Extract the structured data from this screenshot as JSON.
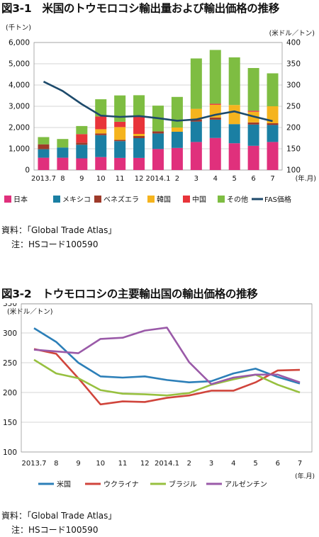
{
  "fig1": {
    "title": "図3-1　米国のトウモロコシ輸出量および輸出価格の推移",
    "source_label": "資料：「Global Trade Atlas」",
    "note_label": "注：HSコード100590"
  },
  "fig2": {
    "title": "図3-2　トウモロコシの主要輸出国の輸出価格の推移",
    "source_label": "資料：「Global Trade Atlas」",
    "note_label": "注：HSコード100590"
  },
  "chart_data": [
    {
      "type": "bar",
      "stacked": true,
      "categories": [
        "2013.7",
        "8",
        "9",
        "10",
        "11",
        "12",
        "2014.1",
        "2",
        "3",
        "4",
        "5",
        "6",
        "7"
      ],
      "xunit": "(年.月)",
      "ylabel": "(千トン)",
      "ylim": [
        0,
        6000
      ],
      "yticks": [
        "0",
        "1,000",
        "2,000",
        "3,000",
        "4,000",
        "5,000",
        "6,000"
      ],
      "y2label": "(米ドル／トン)",
      "y2lim": [
        100,
        400
      ],
      "y2ticks": [
        "100",
        "150",
        "200",
        "250",
        "300",
        "350",
        "400"
      ],
      "grid": true,
      "legend_position": "bottom",
      "series": [
        {
          "name": "日本",
          "color": "#e0307c",
          "values": [
            580,
            580,
            550,
            610,
            570,
            570,
            990,
            1040,
            1320,
            1510,
            1260,
            1140,
            1320
          ]
        },
        {
          "name": "メキシコ",
          "color": "#1a7fa3",
          "values": [
            400,
            480,
            640,
            1030,
            790,
            930,
            730,
            760,
            960,
            860,
            900,
            1000,
            800
          ]
        },
        {
          "name": "ベネズエラ",
          "color": "#9e3a2a",
          "values": [
            230,
            0,
            100,
            80,
            60,
            100,
            100,
            0,
            100,
            100,
            0,
            100,
            80
          ]
        },
        {
          "name": "韓国",
          "color": "#f5b41e",
          "values": [
            0,
            0,
            0,
            200,
            600,
            100,
            0,
            200,
            500,
            600,
            900,
            500,
            800
          ]
        },
        {
          "name": "中国",
          "color": "#e8343a",
          "values": [
            0,
            0,
            400,
            600,
            250,
            800,
            0,
            0,
            0,
            50,
            0,
            50,
            0
          ]
        },
        {
          "name": "その他",
          "color": "#7ebd42",
          "values": [
            340,
            400,
            380,
            810,
            1240,
            1020,
            1210,
            1440,
            2370,
            2530,
            2240,
            2010,
            1550
          ]
        }
      ],
      "line_series": {
        "name": "FAS価格",
        "color": "#1d4a6b",
        "axis": "right",
        "values": [
          308,
          286,
          255,
          228,
          225,
          227,
          222,
          216,
          219,
          230,
          238,
          226,
          215
        ]
      }
    },
    {
      "type": "line",
      "categories": [
        "2013.7",
        "8",
        "9",
        "10",
        "11",
        "12",
        "2014.1",
        "2",
        "3",
        "4",
        "5",
        "6",
        "7"
      ],
      "xunit": "(年.月)",
      "ylabel": "(米ドル／トン)",
      "ylim": [
        100,
        350
      ],
      "yticks": [
        "100",
        "150",
        "200",
        "250",
        "300",
        "350"
      ],
      "grid": true,
      "legend_position": "bottom",
      "series": [
        {
          "name": "米国",
          "color": "#2c7fb8",
          "values": [
            308,
            285,
            250,
            227,
            225,
            227,
            221,
            217,
            219,
            232,
            240,
            226,
            215
          ]
        },
        {
          "name": "ウクライナ",
          "color": "#d0453c",
          "values": [
            273,
            265,
            224,
            180,
            185,
            184,
            191,
            195,
            203,
            203,
            217,
            237,
            238
          ]
        },
        {
          "name": "ブラジル",
          "color": "#97c03f",
          "values": [
            255,
            232,
            224,
            204,
            198,
            197,
            195,
            199,
            213,
            222,
            230,
            213,
            200
          ]
        },
        {
          "name": "アルゼンチン",
          "color": "#9a5aa8",
          "values": [
            272,
            269,
            266,
            290,
            292,
            304,
            309,
            251,
            214,
            225,
            230,
            230,
            217
          ]
        }
      ]
    }
  ]
}
